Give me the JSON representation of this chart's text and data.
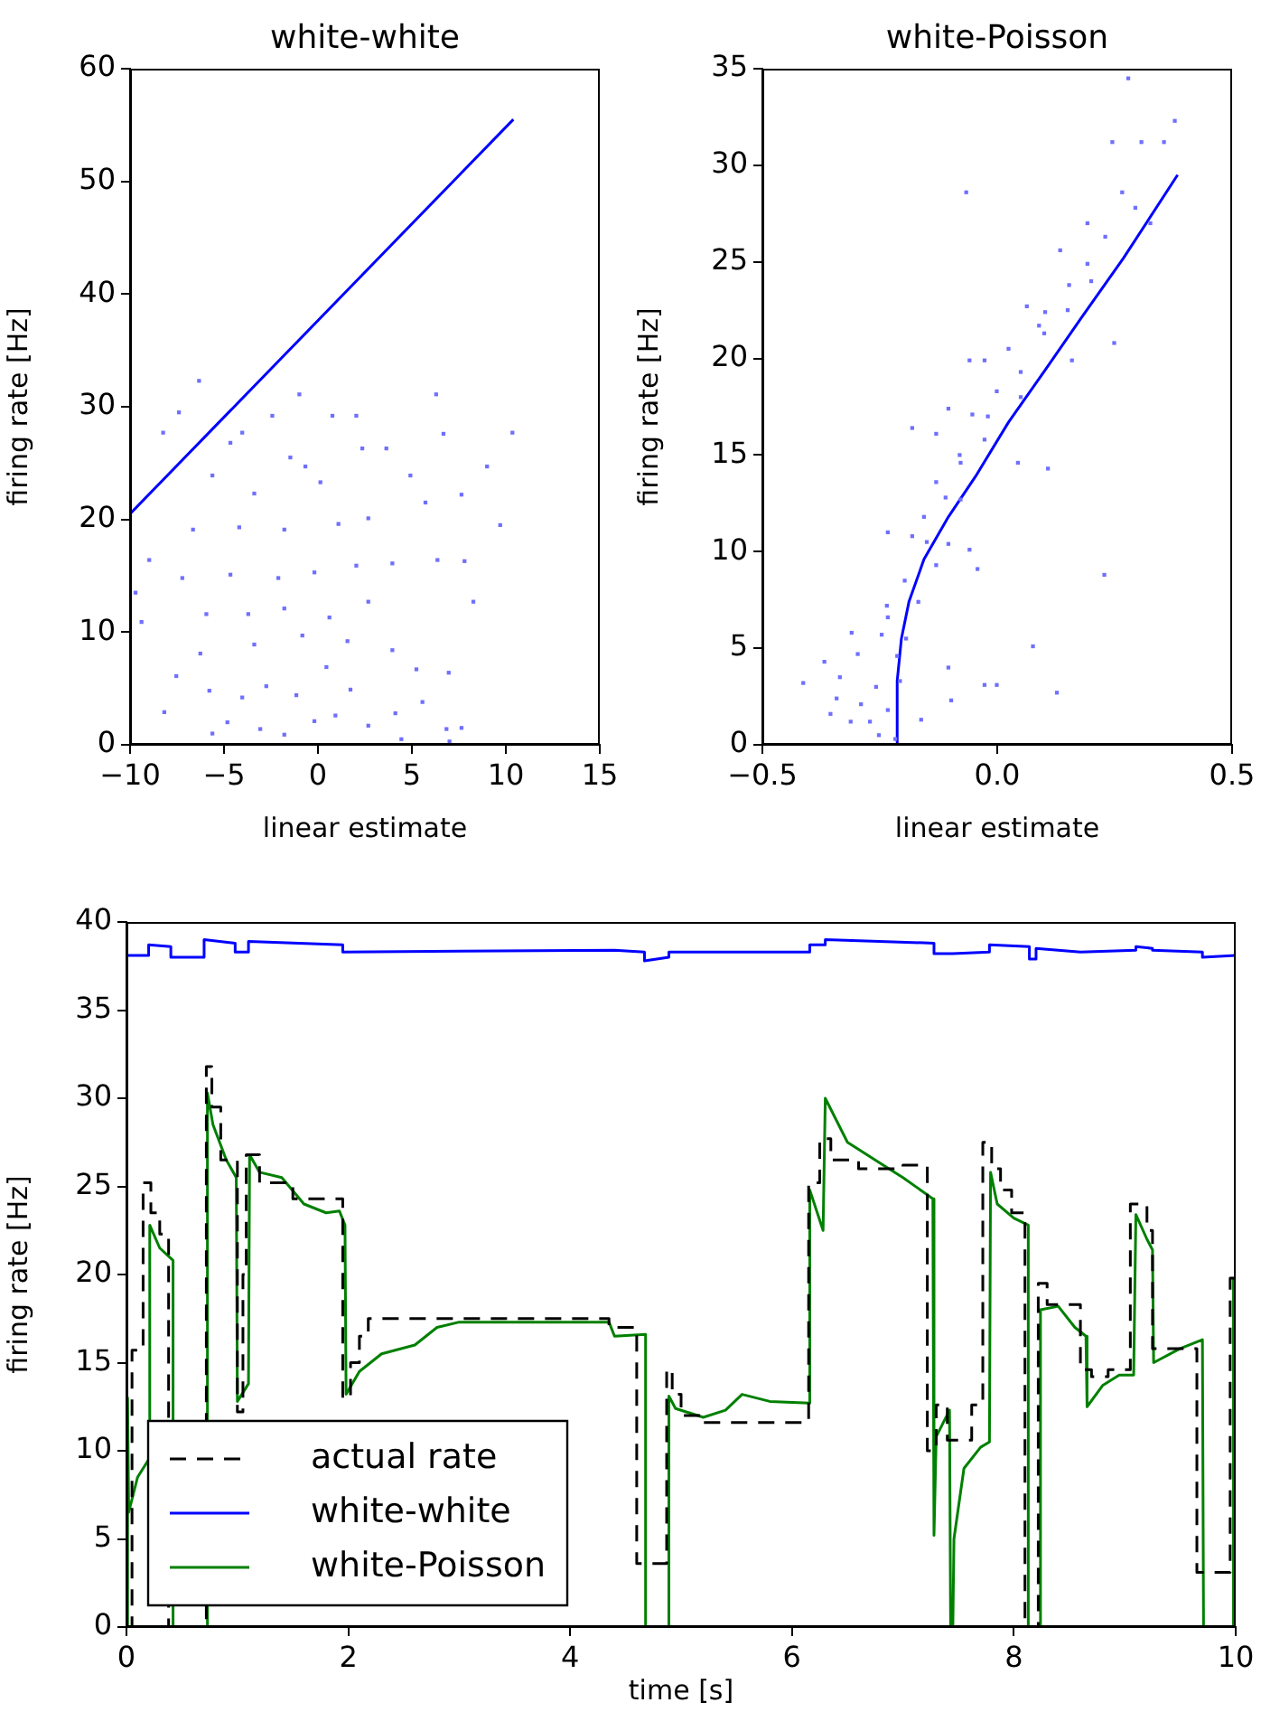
{
  "chart_data": [
    {
      "type": "scatter",
      "title": "white-white",
      "xlabel": "linear estimate",
      "ylabel": "firing rate [Hz]",
      "xlim": [
        -10,
        15
      ],
      "ylim": [
        0,
        60
      ],
      "xticks": [
        {
          "value": -10,
          "label": "−10"
        },
        {
          "value": -5,
          "label": "−5"
        },
        0,
        5,
        10,
        15
      ],
      "yticks": [
        0,
        10,
        20,
        30,
        40,
        50,
        60
      ],
      "series": [
        {
          "type": "scatter",
          "marker": "square",
          "color": "#6f6fff",
          "x": [
            -6.33,
            -0.99,
            6.29,
            10.35,
            9.7,
            9.0,
            -7.4,
            -8.24,
            -8.98,
            -9.71,
            -9.39,
            -7.54,
            -8.18,
            -5.62,
            -4.82,
            -6.26,
            -5.78,
            -4.03,
            -3.07,
            -1.79,
            -0.19,
            0.93,
            1.73,
            2.68,
            4.12,
            5.56,
            6.84,
            7.64,
            7.0,
            4.44,
            5.24,
            6.96,
            8.27,
            7.8,
            6.36,
            5.72,
            7.64,
            6.68,
            4.92,
            3.64,
            2.04,
            0.77,
            -2.43,
            -4.03,
            -4.66,
            -5.62,
            -3.39,
            -1.47,
            -0.67,
            0.13,
            2.36,
            2.68,
            1.09,
            -1.79,
            -4.19,
            -4.66,
            -2.11,
            -0.19,
            2.04,
            3.96,
            2.68,
            0.61,
            -1.79,
            -3.71,
            -3.39,
            -0.83,
            1.57,
            3.96,
            -2.75,
            -1.15,
            0.45,
            -5.94,
            -7.22,
            -6.65
          ],
          "values": [
            32.3,
            31.1,
            31.1,
            27.7,
            19.5,
            24.7,
            29.5,
            27.7,
            16.4,
            13.5,
            10.9,
            6.1,
            2.9,
            1.0,
            2.0,
            8.1,
            4.8,
            4.2,
            1.4,
            0.9,
            2.1,
            2.6,
            4.9,
            1.7,
            2.8,
            3.8,
            1.4,
            1.5,
            0.3,
            0.5,
            6.7,
            6.4,
            12.7,
            16.3,
            16.4,
            21.5,
            22.2,
            27.6,
            23.9,
            26.3,
            29.2,
            29.2,
            29.2,
            27.7,
            26.8,
            23.9,
            22.3,
            25.5,
            24.7,
            23.3,
            26.3,
            20.1,
            19.6,
            19.1,
            19.3,
            15.1,
            14.8,
            15.3,
            15.9,
            16.1,
            12.7,
            11.3,
            12.1,
            11.6,
            8.9,
            9.7,
            9.2,
            8.4,
            5.2,
            4.4,
            6.9,
            11.6,
            14.8,
            19.1
          ]
        },
        {
          "type": "line",
          "marker": "none",
          "color": "#0000ff",
          "x": [
            -10,
            10.4
          ],
          "values": [
            20.5,
            55.5
          ]
        }
      ]
    },
    {
      "type": "scatter",
      "title": "white-Poisson",
      "xlabel": "linear estimate",
      "ylabel": "firing rate [Hz]",
      "xlim": [
        -0.5,
        0.5
      ],
      "ylim": [
        0,
        35
      ],
      "xticks": [
        {
          "value": -0.5,
          "label": "−0.5"
        },
        {
          "value": 0,
          "label": "0.0"
        },
        0.5
      ],
      "yticks": [
        0,
        5,
        10,
        15,
        20,
        25,
        30,
        35
      ],
      "series": [
        {
          "type": "scatter",
          "marker": "square",
          "color": "#6f6fff",
          "x": [
            0.279,
            0.378,
            0.245,
            0.307,
            0.355,
            -0.066,
            0.266,
            0.294,
            0.192,
            0.326,
            0.23,
            0.134,
            0.192,
            0.249,
            0.153,
            0.063,
            0.102,
            0.024,
            -0.027,
            -0.059,
            0.159,
            0.089,
            -0.001,
            0.05,
            -0.053,
            -0.104,
            -0.13,
            -0.181,
            -0.027,
            0.044,
            0.108,
            -0.078,
            -0.13,
            -0.078,
            -0.156,
            -0.233,
            -0.181,
            -0.104,
            -0.059,
            -0.042,
            -0.13,
            -0.197,
            0.228,
            -0.168,
            -0.235,
            -0.233,
            -0.31,
            -0.246,
            0.076,
            -0.194,
            -0.368,
            -0.297,
            -0.213,
            -0.104,
            -0.413,
            -0.335,
            -0.258,
            -0.207,
            -0.027,
            -0.001,
            0.127,
            -0.098,
            -0.342,
            -0.29,
            -0.355,
            -0.271,
            -0.233,
            -0.312,
            -0.162,
            -0.252,
            -0.217,
            0.15,
            0.2,
            0.1,
            0.05,
            -0.02,
            -0.08,
            -0.11,
            -0.15
          ],
          "values": [
            34.5,
            32.3,
            31.2,
            31.2,
            31.2,
            28.6,
            28.6,
            27.8,
            27.0,
            27.0,
            26.3,
            25.6,
            24.9,
            20.8,
            23.8,
            22.7,
            22.4,
            20.5,
            19.9,
            19.9,
            19.9,
            21.7,
            18.3,
            18.0,
            17.1,
            17.4,
            16.1,
            16.4,
            15.8,
            14.6,
            14.3,
            14.6,
            13.6,
            12.7,
            11.8,
            11.0,
            10.8,
            10.4,
            10.1,
            9.1,
            9.3,
            8.5,
            8.8,
            7.4,
            7.2,
            6.6,
            5.8,
            5.7,
            5.1,
            5.5,
            4.3,
            4.7,
            4.6,
            4.0,
            3.2,
            3.5,
            3.0,
            3.3,
            3.1,
            3.1,
            2.7,
            2.3,
            2.4,
            2.1,
            1.6,
            1.2,
            1.8,
            1.2,
            1.3,
            0.5,
            0.3,
            22.5,
            24.0,
            21.3,
            19.3,
            17.0,
            15.0,
            12.8,
            10.5
          ]
        },
        {
          "type": "line",
          "marker": "none",
          "color": "#0000ff",
          "x": [
            -0.213,
            -0.213,
            -0.204,
            -0.188,
            -0.156,
            -0.104,
            -0.046,
            0.024,
            0.102,
            0.179,
            0.269,
            0.384
          ],
          "values": [
            0,
            3.3,
            5.5,
            7.4,
            9.6,
            11.8,
            13.9,
            16.7,
            19.4,
            22.1,
            25.2,
            29.5
          ]
        }
      ]
    },
    {
      "type": "line",
      "xlabel": "time [s]",
      "ylabel": "firing rate [Hz]",
      "xlim": [
        0,
        10
      ],
      "ylim": [
        0,
        40
      ],
      "xticks": [
        0,
        2,
        4,
        6,
        8,
        10
      ],
      "yticks": [
        0,
        5,
        10,
        15,
        20,
        25,
        30,
        35,
        40
      ],
      "legend": "bottom left",
      "marker": "none",
      "series": [
        {
          "name": "actual rate",
          "color": "#000000",
          "line_style": "dashed",
          "x": [
            0,
            0.05,
            0.05,
            0.15,
            0.15,
            0.22,
            0.22,
            0.3,
            0.3,
            0.38,
            0.38,
            0.72,
            0.72,
            0.77,
            0.77,
            0.85,
            0.85,
            1.0,
            1.0,
            1.05,
            1.05,
            1.08,
            1.08,
            1.2,
            1.2,
            1.5,
            1.5,
            1.95,
            1.95,
            2.02,
            2.02,
            2.1,
            2.1,
            2.18,
            2.18,
            4.35,
            4.35,
            4.6,
            4.6,
            4.87,
            4.87,
            4.92,
            4.92,
            5.0,
            5.0,
            5.2,
            5.2,
            6.15,
            6.15,
            6.25,
            6.25,
            6.35,
            6.35,
            6.6,
            6.6,
            7.0,
            7.0,
            7.22,
            7.22,
            7.3,
            7.3,
            7.4,
            7.4,
            7.62,
            7.62,
            7.72,
            7.72,
            7.8,
            7.8,
            7.88,
            7.88,
            7.98,
            7.98,
            8.1,
            8.1,
            8.22,
            8.22,
            8.3,
            8.3,
            8.6,
            8.6,
            8.7,
            8.7,
            8.85,
            8.85,
            9.05,
            9.05,
            9.2,
            9.2,
            9.25,
            9.25,
            9.65,
            9.65,
            9.95,
            9.95,
            10
          ],
          "values": [
            0,
            0,
            15.7,
            15.7,
            25.2,
            25.2,
            23.5,
            23.5,
            22.3,
            22.3,
            0,
            0,
            31.8,
            31.8,
            29.5,
            29.5,
            26.5,
            26.5,
            12.2,
            12.2,
            20,
            20,
            26.8,
            26.8,
            25.2,
            25.2,
            24.3,
            24.3,
            13,
            13,
            15,
            15,
            16.5,
            16.5,
            17.5,
            17.5,
            17,
            17,
            3.6,
            3.6,
            14.6,
            14.6,
            13.2,
            13.2,
            12,
            12,
            11.6,
            11.6,
            25.2,
            25.2,
            27.7,
            27.7,
            26.5,
            26.5,
            26,
            26,
            26.2,
            26.2,
            10,
            10,
            12.6,
            12.6,
            10.6,
            10.6,
            12.6,
            12.6,
            27.5,
            27.5,
            26,
            26,
            24.8,
            24.8,
            23.5,
            23.5,
            0,
            0,
            19.5,
            19.5,
            18.3,
            18.3,
            14.6,
            14.6,
            14.2,
            14.2,
            14.6,
            14.6,
            24,
            24,
            22.5,
            22.5,
            15.8,
            15.8,
            3.1,
            3.1,
            19.8,
            19.8
          ]
        },
        {
          "name": "white-white",
          "color": "#0000ff",
          "line_style": "solid",
          "x": [
            0,
            0.2,
            0.2,
            0.4,
            0.4,
            0.6,
            0.7,
            0.7,
            0.98,
            0.98,
            1.1,
            1.1,
            1.95,
            1.95,
            4.4,
            4.67,
            4.67,
            4.89,
            4.89,
            6.16,
            6.16,
            6.3,
            6.3,
            7.28,
            7.28,
            7.45,
            7.78,
            7.78,
            8.14,
            8.14,
            8.2,
            8.2,
            8.6,
            9.1,
            9.1,
            9.25,
            9.25,
            9.7,
            9.7,
            10
          ],
          "values": [
            38.1,
            38.1,
            38.7,
            38.6,
            38.0,
            38.0,
            38.0,
            39.0,
            38.8,
            38.3,
            38.3,
            38.9,
            38.7,
            38.3,
            38.4,
            38.3,
            37.8,
            38.0,
            38.3,
            38.3,
            38.7,
            38.7,
            39.0,
            38.8,
            38.2,
            38.2,
            38.3,
            38.7,
            38.6,
            37.9,
            37.9,
            38.5,
            38.3,
            38.4,
            38.6,
            38.5,
            38.4,
            38.3,
            38.0,
            38.1
          ]
        },
        {
          "name": "white-Poisson",
          "color": "#008000",
          "line_style": "solid",
          "x": [
            0,
            0.01,
            0.02,
            0.1,
            0.2,
            0.21,
            0.3,
            0.42,
            0.42,
            0.73,
            0.73,
            0.78,
            0.9,
            0.99,
            1.0,
            1.1,
            1.11,
            1.2,
            1.4,
            1.6,
            1.8,
            1.92,
            1.97,
            1.98,
            2.1,
            2.3,
            2.6,
            2.8,
            3.0,
            4.35,
            4.4,
            4.68,
            4.68,
            4.89,
            4.89,
            4.95,
            5.2,
            5.4,
            5.55,
            5.8,
            6.16,
            6.16,
            6.28,
            6.3,
            6.5,
            6.8,
            7.0,
            7.27,
            7.28,
            7.3,
            7.42,
            7.43,
            7.45,
            7.46,
            7.55,
            7.7,
            7.78,
            7.79,
            7.85,
            8.0,
            8.13,
            8.13,
            8.24,
            8.24,
            8.4,
            8.55,
            8.65,
            8.66,
            8.8,
            8.95,
            9.08,
            9.1,
            9.2,
            9.25,
            9.26,
            9.5,
            9.7,
            9.71,
            9.98,
            9.98
          ],
          "values": [
            0,
            13,
            6.5,
            8.5,
            9.5,
            22.8,
            21.5,
            20.8,
            0,
            0,
            30.3,
            28.5,
            26.5,
            25.5,
            12.8,
            13.8,
            26.8,
            25.8,
            25.5,
            24,
            23.5,
            23.6,
            22.8,
            13.2,
            14.5,
            15.5,
            16,
            17,
            17.3,
            17.3,
            16.5,
            16.6,
            0,
            0,
            13.1,
            12.4,
            11.9,
            12.3,
            13.2,
            12.8,
            12.7,
            24.8,
            22.5,
            30.0,
            27.5,
            26.3,
            25.5,
            24.3,
            5.2,
            10.8,
            12.3,
            0,
            0,
            5,
            9,
            10.2,
            10.5,
            25.8,
            24,
            23.2,
            22.8,
            0,
            0,
            18,
            18.2,
            17,
            16.5,
            12.5,
            13.7,
            14.3,
            14.3,
            23.4,
            22,
            21.4,
            15,
            15.8,
            16.3,
            0,
            0,
            19.8
          ]
        }
      ]
    }
  ]
}
